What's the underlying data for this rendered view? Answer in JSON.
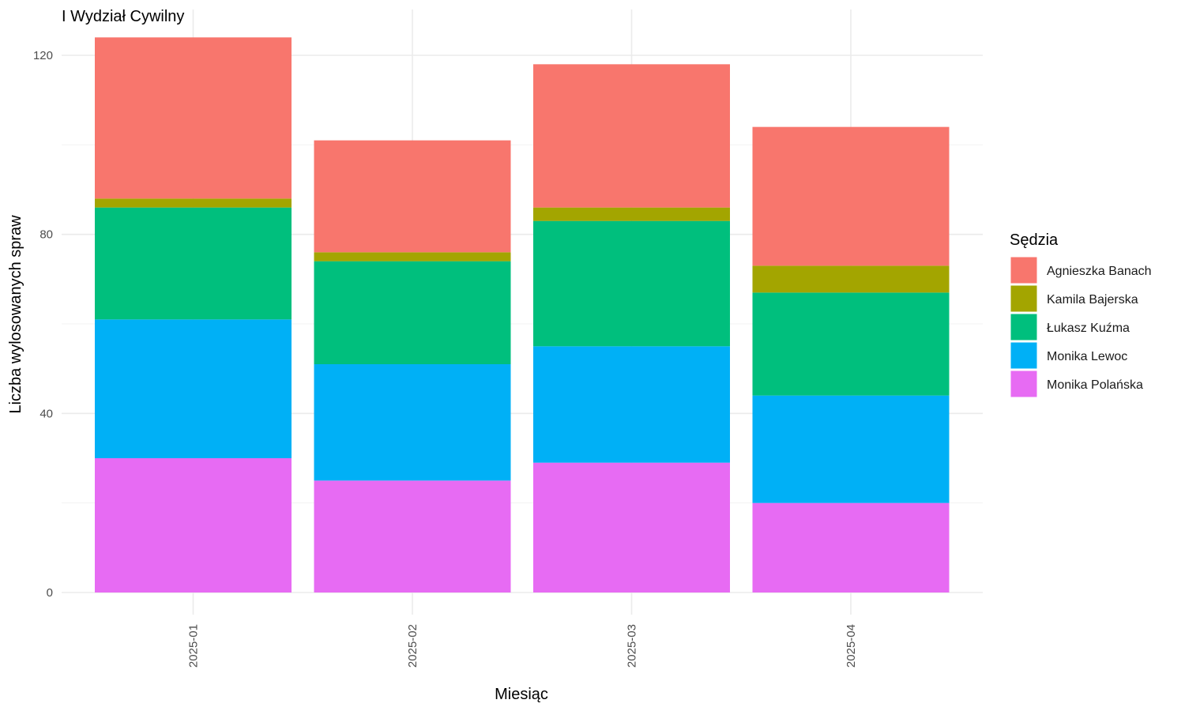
{
  "chart_data": {
    "type": "bar",
    "stacked": true,
    "title": "I Wydział Cywilny",
    "xlabel": "Miesiąc",
    "ylabel": "Liczba wylosowanych spraw",
    "ylim": [
      0,
      125
    ],
    "yticks": [
      0,
      40,
      80,
      120
    ],
    "grid": true,
    "legend_title": "Sędzia",
    "legend_position": "right",
    "categories": [
      "2025-01",
      "2025-02",
      "2025-03",
      "2025-04"
    ],
    "series": [
      {
        "name": "Agnieszka Banach",
        "color": "#F8766D",
        "values": [
          36,
          25,
          32,
          31
        ]
      },
      {
        "name": "Kamila Bajerska",
        "color": "#A3A500",
        "values": [
          2,
          2,
          3,
          6
        ]
      },
      {
        "name": "Łukasz Kuźma",
        "color": "#00BF7D",
        "values": [
          25,
          23,
          28,
          23
        ]
      },
      {
        "name": "Monika Lewoc",
        "color": "#00B0F6",
        "values": [
          31,
          26,
          26,
          24
        ]
      },
      {
        "name": "Monika Polańska",
        "color": "#E76BF3",
        "values": [
          30,
          25,
          29,
          20
        ]
      }
    ]
  }
}
